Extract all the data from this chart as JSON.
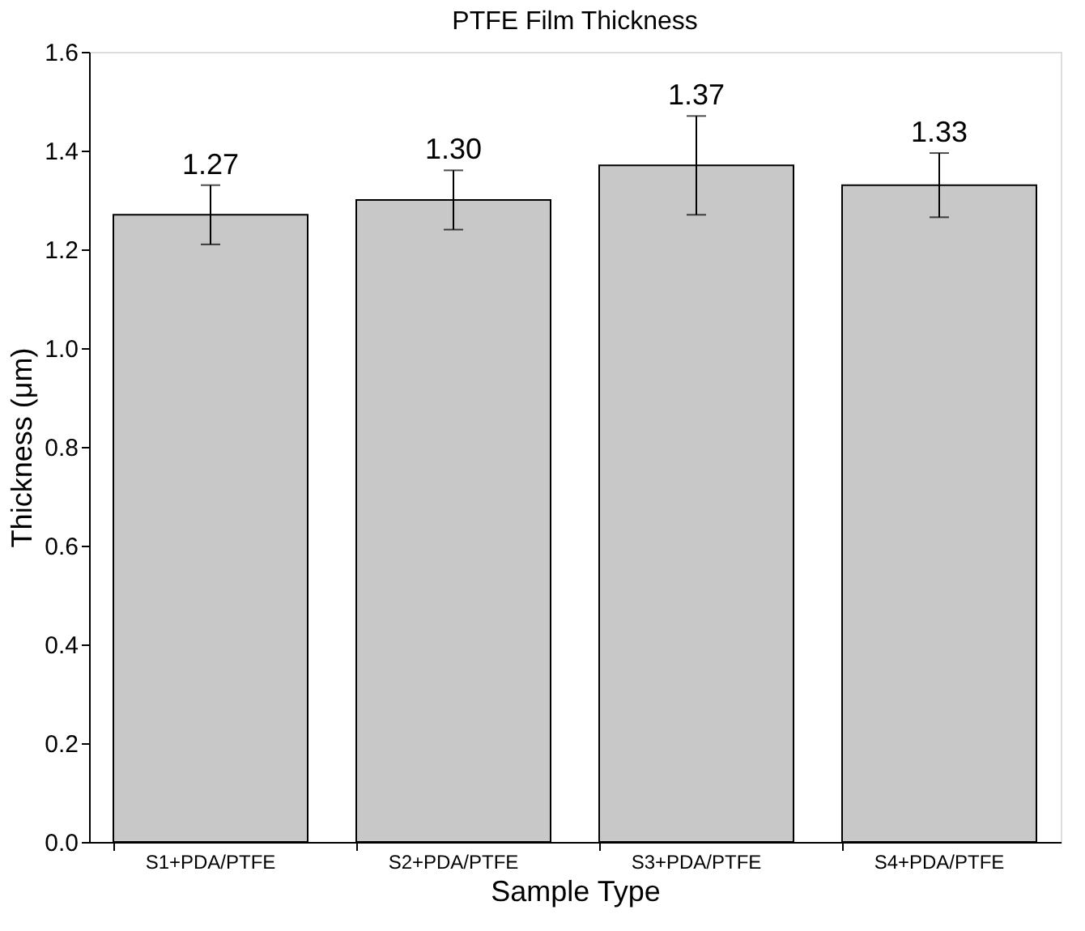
{
  "chart_data": {
    "type": "bar",
    "title": "PTFE Film Thickness",
    "xlabel": "Sample Type",
    "ylabel": "Thickness (μm)",
    "categories": [
      "S1+PDA/PTFE",
      "S2+PDA/PTFE",
      "S3+PDA/PTFE",
      "S4+PDA/PTFE"
    ],
    "values": [
      1.27,
      1.3,
      1.37,
      1.33
    ],
    "value_labels": [
      "1.27",
      "1.30",
      "1.37",
      "1.33"
    ],
    "errors": [
      0.06,
      0.06,
      0.1,
      0.065
    ],
    "color": "#c8c8c8",
    "ylim": [
      0,
      1.6
    ],
    "yticks": [
      {
        "value": 0,
        "label": "0.0"
      },
      {
        "value": 0.2,
        "label": "0.2"
      },
      {
        "value": 0.4,
        "label": "0.4"
      },
      {
        "value": 0.6,
        "label": "0.6"
      },
      {
        "value": 0.8,
        "label": "0.8"
      },
      {
        "value": 1.0,
        "label": "1.0"
      },
      {
        "value": 1.2,
        "label": "1.2"
      },
      {
        "value": 1.4,
        "label": "1.4"
      },
      {
        "value": 1.6,
        "label": "1.6"
      }
    ],
    "grid": false
  }
}
